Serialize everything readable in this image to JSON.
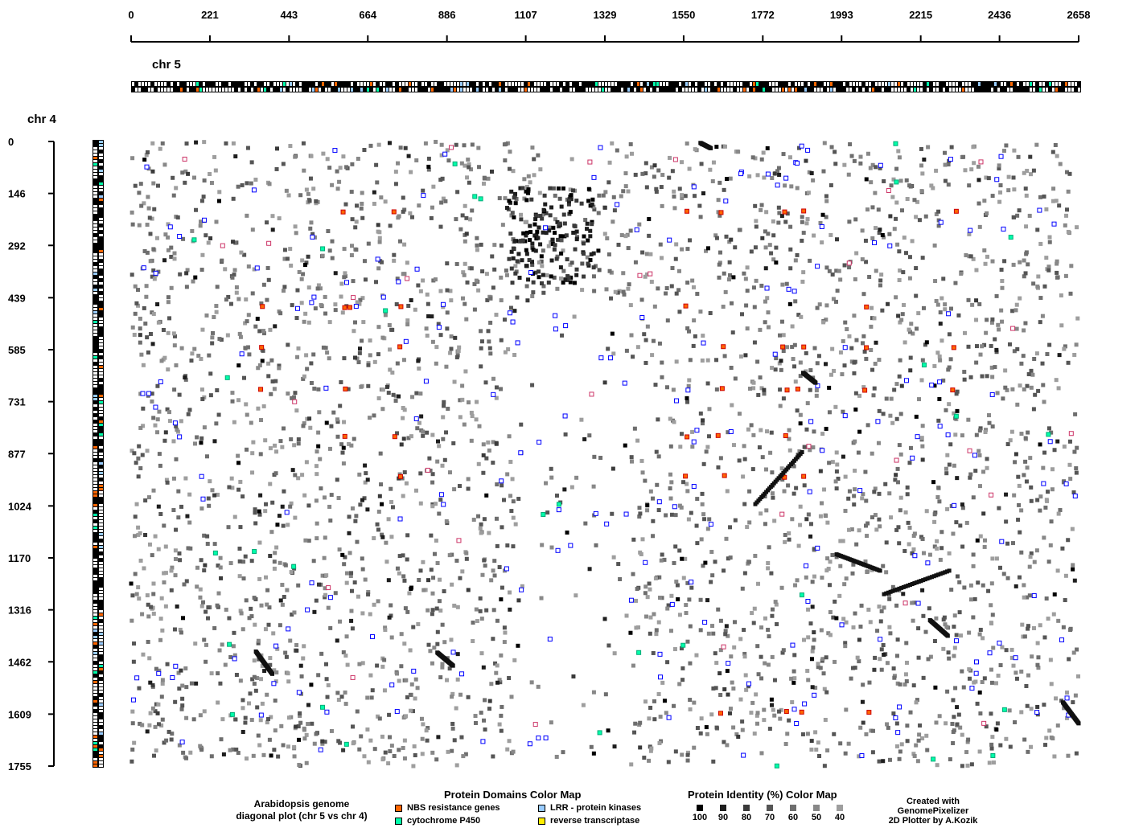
{
  "chart_data": {
    "type": "scatter",
    "subtype": "genome dot plot",
    "x_axis": {
      "label": "chr 5",
      "range": [
        0,
        2658
      ],
      "ticks": [
        0,
        221,
        443,
        664,
        886,
        1107,
        1329,
        1550,
        1772,
        1993,
        2215,
        2436,
        2658
      ]
    },
    "y_axis": {
      "label": "chr 4",
      "range": [
        0,
        1755
      ],
      "inverted": true,
      "ticks": [
        0,
        146,
        292,
        439,
        585,
        731,
        877,
        1024,
        1170,
        1316,
        1462,
        1609,
        1755
      ]
    },
    "caption": [
      "Arabidopsis genome",
      "diagonal plot (chr 5 vs chr 4)"
    ],
    "domain_legend": {
      "title": "Protein Domains Color Map",
      "items": [
        {
          "label": "NBS resistance genes",
          "color": "#ff6600"
        },
        {
          "label": "LRR - protein kinases",
          "color": "#99ccff"
        },
        {
          "label": "cytochrome P450",
          "color": "#00ffaa"
        },
        {
          "label": "reverse transcriptase",
          "color": "#ffee00"
        }
      ]
    },
    "identity_legend": {
      "title": "Protein Identity (%) Color Map",
      "items": [
        {
          "label": "100",
          "color": "#000000"
        },
        {
          "label": "90",
          "color": "#1e1e1e"
        },
        {
          "label": "80",
          "color": "#3a3a3a"
        },
        {
          "label": "70",
          "color": "#555555"
        },
        {
          "label": "60",
          "color": "#6e6e6e"
        },
        {
          "label": "50",
          "color": "#888888"
        },
        {
          "label": "40",
          "color": "#9e9e9e"
        }
      ]
    },
    "duplication_segments": [
      {
        "x": [
          1597,
          1626
        ],
        "y": [
          4,
          19
        ]
      },
      {
        "x": [
          1751,
          1882
        ],
        "y": [
          1019,
          873
        ]
      },
      {
        "x": [
          1979,
          2101
        ],
        "y": [
          1160,
          1206
        ]
      },
      {
        "x": [
          2112,
          2295
        ],
        "y": [
          1272,
          1206
        ]
      },
      {
        "x": [
          2241,
          2291
        ],
        "y": [
          1345,
          1389
        ]
      },
      {
        "x": [
          350,
          396
        ],
        "y": [
          1433,
          1496
        ]
      },
      {
        "x": [
          859,
          903
        ],
        "y": [
          1436,
          1473
        ]
      },
      {
        "x": [
          2614,
          2658
        ],
        "y": [
          1576,
          1635
        ]
      },
      {
        "x": [
          1885,
          1920
        ],
        "y": [
          650,
          678
        ]
      }
    ],
    "identity_clusters": [
      {
        "region": "center",
        "x_range": [
          1060,
          1300
        ],
        "y_range": [
          130,
          400
        ],
        "identity": "90-100"
      }
    ],
    "annotated_hits": {
      "nbs_rows_chr4": [
        197,
        465,
        578,
        697,
        829,
        941,
        1604
      ],
      "nbs_cols_chr5": [
        360,
        595,
        604,
        747,
        1553,
        1656,
        1834,
        1880,
        2062,
        2309
      ]
    }
  },
  "credits": [
    "Created with",
    "GenomePixelizer",
    "2D Plotter by A.Kozik"
  ]
}
